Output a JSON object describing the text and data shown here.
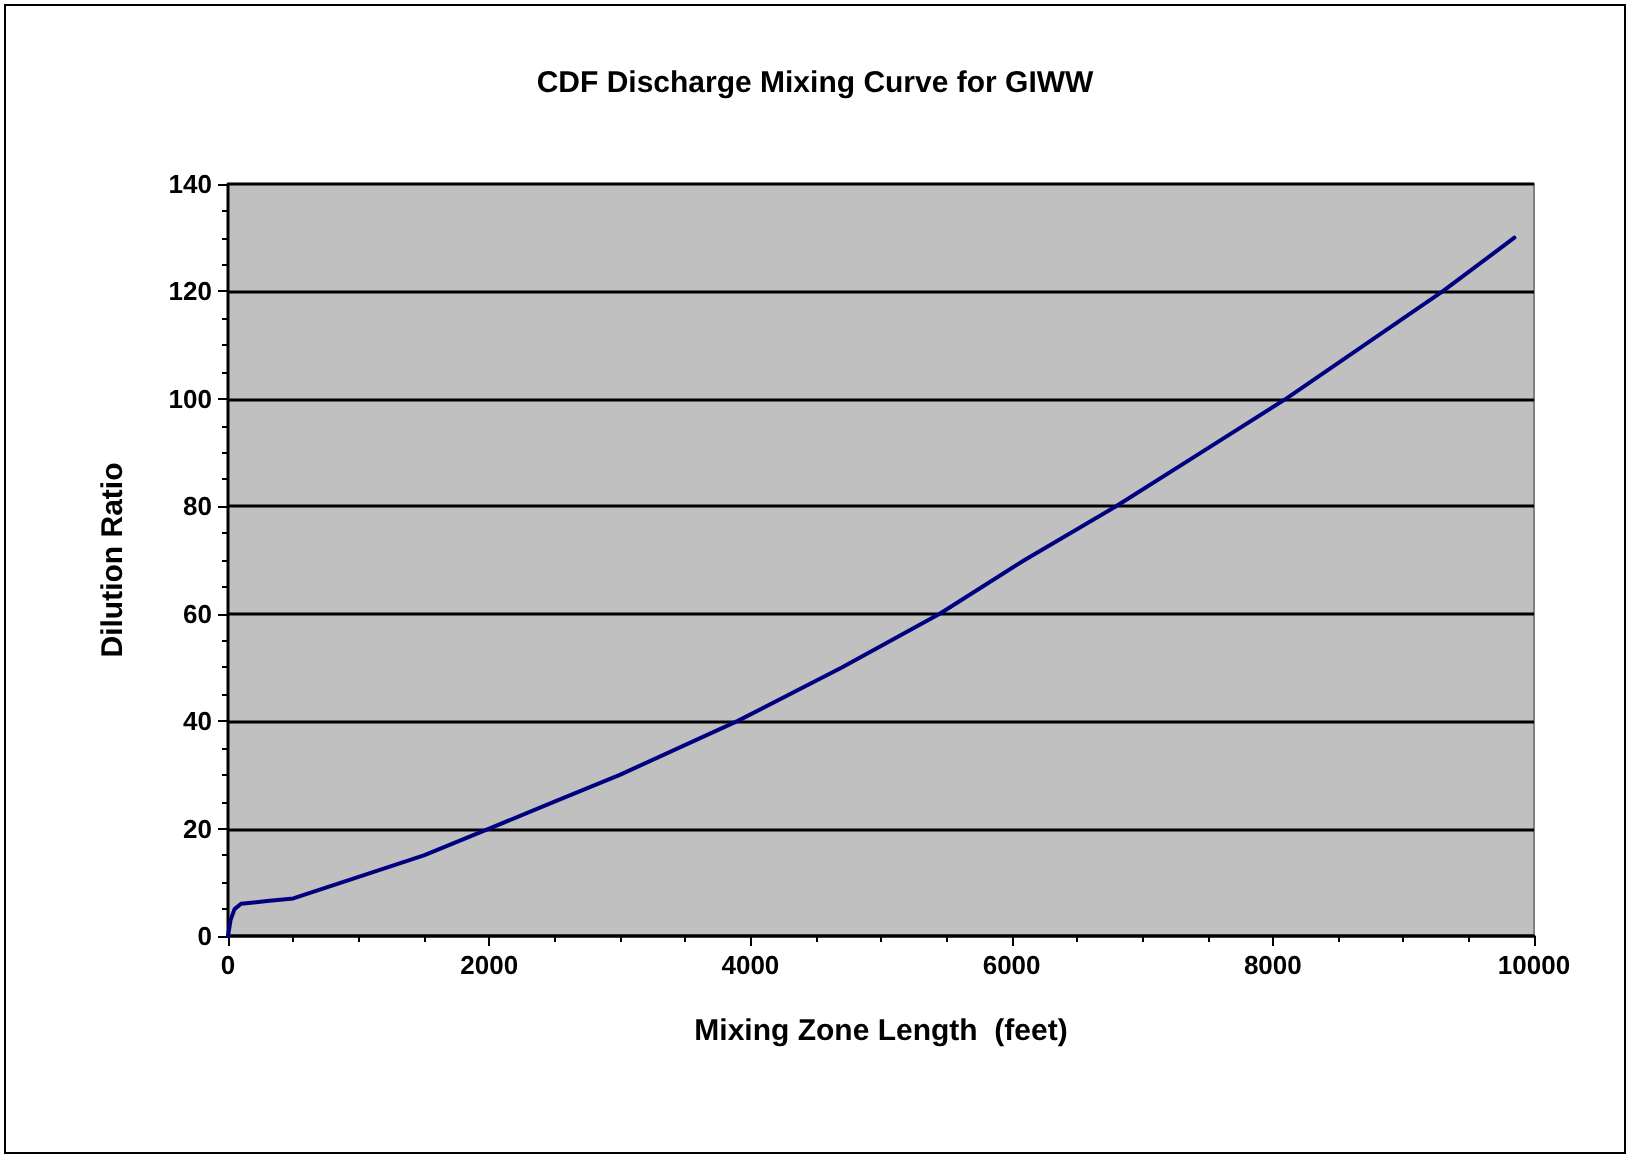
{
  "chart_data": {
    "type": "line",
    "title": "CDF Discharge Mixing Curve for GIWW",
    "xlabel": "Mixing Zone Length  (feet)",
    "ylabel": "Dilution Ratio",
    "series": [
      {
        "color": "#000080",
        "x": [
          0,
          20,
          50,
          100,
          300,
          500,
          1000,
          1500,
          2000,
          2500,
          3000,
          3900,
          4700,
          5450,
          6100,
          6800,
          7450,
          8100,
          8700,
          9300,
          9850
        ],
        "values": [
          0,
          3,
          5,
          6,
          6.5,
          7,
          11,
          15,
          20,
          25,
          30,
          40,
          50,
          60,
          70,
          80,
          90,
          100,
          110,
          120,
          130
        ]
      }
    ],
    "xlim": [
      0,
      10000
    ],
    "xticks": [
      0,
      2000,
      4000,
      6000,
      8000,
      10000
    ],
    "ylim": [
      0,
      140
    ],
    "yticks": [
      0,
      20,
      40,
      60,
      80,
      100,
      120,
      140
    ],
    "grid": "y",
    "marker": "none",
    "line_style": "solid"
  }
}
